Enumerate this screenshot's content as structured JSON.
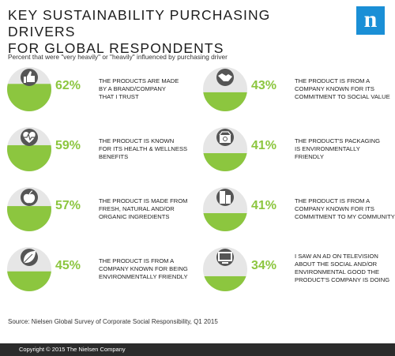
{
  "title_line1": "KEY SUSTAINABILITY PURCHASING DRIVERS",
  "title_line2": "FOR GLOBAL RESPONDENTS",
  "subtitle": "Percent that were \"very heavily\" or \"heavily\" influenced by purchasing driver",
  "logo_letter": "n",
  "source": "Source: Nielsen Global Survey of Corporate Social Responsibility, Q1 2015",
  "footer": "Copyright © 2015 The Nielsen Company",
  "colors": {
    "accent": "#8cc63f",
    "icon_circle": "#555555",
    "footer_bg": "#2b2b2b",
    "logo_bg": "#1a8fd6"
  },
  "chart_data": {
    "type": "bar",
    "title": "KEY SUSTAINABILITY PURCHASING DRIVERS FOR GLOBAL RESPONDENTS",
    "categories": [
      "THE PRODUCTS ARE MADE BY A BRAND/COMPANY THAT I TRUST",
      "THE PRODUCT IS KNOWN FOR ITS HEALTH & WELLNESS BENEFITS",
      "THE PRODUCT IS MADE FROM FRESH, NATURAL AND/OR ORGANIC INGREDIENTS",
      "THE PRODUCT IS FROM A COMPANY KNOWN FOR BEING ENVIRONMENTALLY FRIENDLY",
      "THE PRODUCT IS FROM A COMPANY KNOWN FOR ITS COMMITMENT TO SOCIAL VALUE",
      "THE PRODUCT'S PACKAGING IS ENVIRONMENTALLY FRIENDLY",
      "THE PRODUCT IS FROM A COMPANY KNOWN FOR ITS COMMITMENT TO MY COMMUNITY",
      "I SAW AN AD ON TELEVISION ABOUT THE SOCIAL AND/OR ENVIRONMENTAL GOOD THE PRODUCT'S COMPANY IS DOING"
    ],
    "values": [
      62,
      59,
      57,
      45,
      43,
      41,
      41,
      34
    ],
    "labels": [
      "62%",
      "59%",
      "57%",
      "45%",
      "43%",
      "41%",
      "41%",
      "34%"
    ],
    "desc_lines": [
      [
        "THE PRODUCTS ARE MADE",
        "BY A BRAND/COMPANY",
        "THAT I TRUST"
      ],
      [
        "THE PRODUCT IS KNOWN",
        "FOR ITS HEALTH & WELLNESS",
        "BENEFITS"
      ],
      [
        "THE PRODUCT IS MADE FROM",
        "FRESH, NATURAL AND/OR",
        "ORGANIC INGREDIENTS"
      ],
      [
        "THE PRODUCT IS FROM A",
        "COMPANY KNOWN FOR BEING",
        "ENVIRONMENTALLY FRIENDLY"
      ],
      [
        "THE PRODUCT IS FROM A",
        "COMPANY KNOWN FOR ITS",
        "COMMITMENT TO SOCIAL VALUE"
      ],
      [
        "THE PRODUCT'S PACKAGING",
        "IS ENVIRONMENTALLY",
        "FRIENDLY"
      ],
      [
        "THE PRODUCT IS FROM A",
        "COMPANY KNOWN FOR ITS",
        "COMMITMENT TO MY COMMUNITY"
      ],
      [
        "I SAW AN AD ON TELEVISION",
        "ABOUT THE SOCIAL AND/OR",
        "ENVIRONMENTAL GOOD THE",
        "PRODUCT'S COMPANY IS DOING"
      ]
    ],
    "icons": [
      "thumbs-up-icon",
      "heart-pulse-icon",
      "apple-icon",
      "leaf-icon",
      "handshake-icon",
      "recycle-box-icon",
      "buildings-icon",
      "television-icon"
    ],
    "ylim": [
      0,
      100
    ]
  }
}
